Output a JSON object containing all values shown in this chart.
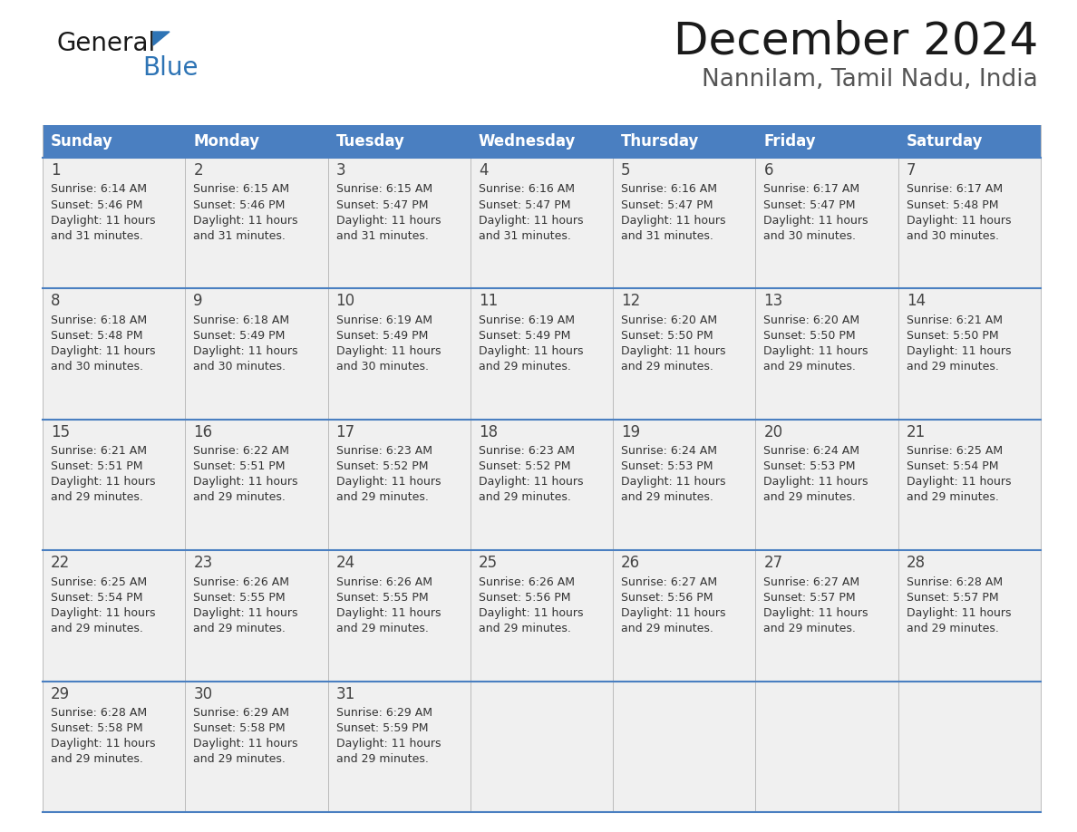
{
  "title": "December 2024",
  "subtitle": "Nannilam, Tamil Nadu, India",
  "header_color": "#4a7fc1",
  "header_text_color": "#ffffff",
  "bg_color": "#ffffff",
  "cell_bg": "#f0f0f0",
  "days_of_week": [
    "Sunday",
    "Monday",
    "Tuesday",
    "Wednesday",
    "Thursday",
    "Friday",
    "Saturday"
  ],
  "calendar_data": [
    [
      {
        "day": "1",
        "sunrise": "6:14 AM",
        "sunset": "5:46 PM",
        "dl1": "Daylight: 11 hours",
        "dl2": "and 31 minutes."
      },
      {
        "day": "2",
        "sunrise": "6:15 AM",
        "sunset": "5:46 PM",
        "dl1": "Daylight: 11 hours",
        "dl2": "and 31 minutes."
      },
      {
        "day": "3",
        "sunrise": "6:15 AM",
        "sunset": "5:47 PM",
        "dl1": "Daylight: 11 hours",
        "dl2": "and 31 minutes."
      },
      {
        "day": "4",
        "sunrise": "6:16 AM",
        "sunset": "5:47 PM",
        "dl1": "Daylight: 11 hours",
        "dl2": "and 31 minutes."
      },
      {
        "day": "5",
        "sunrise": "6:16 AM",
        "sunset": "5:47 PM",
        "dl1": "Daylight: 11 hours",
        "dl2": "and 31 minutes."
      },
      {
        "day": "6",
        "sunrise": "6:17 AM",
        "sunset": "5:47 PM",
        "dl1": "Daylight: 11 hours",
        "dl2": "and 30 minutes."
      },
      {
        "day": "7",
        "sunrise": "6:17 AM",
        "sunset": "5:48 PM",
        "dl1": "Daylight: 11 hours",
        "dl2": "and 30 minutes."
      }
    ],
    [
      {
        "day": "8",
        "sunrise": "6:18 AM",
        "sunset": "5:48 PM",
        "dl1": "Daylight: 11 hours",
        "dl2": "and 30 minutes."
      },
      {
        "day": "9",
        "sunrise": "6:18 AM",
        "sunset": "5:49 PM",
        "dl1": "Daylight: 11 hours",
        "dl2": "and 30 minutes."
      },
      {
        "day": "10",
        "sunrise": "6:19 AM",
        "sunset": "5:49 PM",
        "dl1": "Daylight: 11 hours",
        "dl2": "and 30 minutes."
      },
      {
        "day": "11",
        "sunrise": "6:19 AM",
        "sunset": "5:49 PM",
        "dl1": "Daylight: 11 hours",
        "dl2": "and 29 minutes."
      },
      {
        "day": "12",
        "sunrise": "6:20 AM",
        "sunset": "5:50 PM",
        "dl1": "Daylight: 11 hours",
        "dl2": "and 29 minutes."
      },
      {
        "day": "13",
        "sunrise": "6:20 AM",
        "sunset": "5:50 PM",
        "dl1": "Daylight: 11 hours",
        "dl2": "and 29 minutes."
      },
      {
        "day": "14",
        "sunrise": "6:21 AM",
        "sunset": "5:50 PM",
        "dl1": "Daylight: 11 hours",
        "dl2": "and 29 minutes."
      }
    ],
    [
      {
        "day": "15",
        "sunrise": "6:21 AM",
        "sunset": "5:51 PM",
        "dl1": "Daylight: 11 hours",
        "dl2": "and 29 minutes."
      },
      {
        "day": "16",
        "sunrise": "6:22 AM",
        "sunset": "5:51 PM",
        "dl1": "Daylight: 11 hours",
        "dl2": "and 29 minutes."
      },
      {
        "day": "17",
        "sunrise": "6:23 AM",
        "sunset": "5:52 PM",
        "dl1": "Daylight: 11 hours",
        "dl2": "and 29 minutes."
      },
      {
        "day": "18",
        "sunrise": "6:23 AM",
        "sunset": "5:52 PM",
        "dl1": "Daylight: 11 hours",
        "dl2": "and 29 minutes."
      },
      {
        "day": "19",
        "sunrise": "6:24 AM",
        "sunset": "5:53 PM",
        "dl1": "Daylight: 11 hours",
        "dl2": "and 29 minutes."
      },
      {
        "day": "20",
        "sunrise": "6:24 AM",
        "sunset": "5:53 PM",
        "dl1": "Daylight: 11 hours",
        "dl2": "and 29 minutes."
      },
      {
        "day": "21",
        "sunrise": "6:25 AM",
        "sunset": "5:54 PM",
        "dl1": "Daylight: 11 hours",
        "dl2": "and 29 minutes."
      }
    ],
    [
      {
        "day": "22",
        "sunrise": "6:25 AM",
        "sunset": "5:54 PM",
        "dl1": "Daylight: 11 hours",
        "dl2": "and 29 minutes."
      },
      {
        "day": "23",
        "sunrise": "6:26 AM",
        "sunset": "5:55 PM",
        "dl1": "Daylight: 11 hours",
        "dl2": "and 29 minutes."
      },
      {
        "day": "24",
        "sunrise": "6:26 AM",
        "sunset": "5:55 PM",
        "dl1": "Daylight: 11 hours",
        "dl2": "and 29 minutes."
      },
      {
        "day": "25",
        "sunrise": "6:26 AM",
        "sunset": "5:56 PM",
        "dl1": "Daylight: 11 hours",
        "dl2": "and 29 minutes."
      },
      {
        "day": "26",
        "sunrise": "6:27 AM",
        "sunset": "5:56 PM",
        "dl1": "Daylight: 11 hours",
        "dl2": "and 29 minutes."
      },
      {
        "day": "27",
        "sunrise": "6:27 AM",
        "sunset": "5:57 PM",
        "dl1": "Daylight: 11 hours",
        "dl2": "and 29 minutes."
      },
      {
        "day": "28",
        "sunrise": "6:28 AM",
        "sunset": "5:57 PM",
        "dl1": "Daylight: 11 hours",
        "dl2": "and 29 minutes."
      }
    ],
    [
      {
        "day": "29",
        "sunrise": "6:28 AM",
        "sunset": "5:58 PM",
        "dl1": "Daylight: 11 hours",
        "dl2": "and 29 minutes."
      },
      {
        "day": "30",
        "sunrise": "6:29 AM",
        "sunset": "5:58 PM",
        "dl1": "Daylight: 11 hours",
        "dl2": "and 29 minutes."
      },
      {
        "day": "31",
        "sunrise": "6:29 AM",
        "sunset": "5:59 PM",
        "dl1": "Daylight: 11 hours",
        "dl2": "and 29 minutes."
      },
      null,
      null,
      null,
      null
    ]
  ],
  "line_color": "#4a7fc1",
  "text_color": "#333333",
  "day_num_color": "#444444",
  "title_fontsize": 36,
  "subtitle_fontsize": 19,
  "header_fontsize": 12,
  "day_num_fontsize": 12,
  "cell_fontsize": 9
}
